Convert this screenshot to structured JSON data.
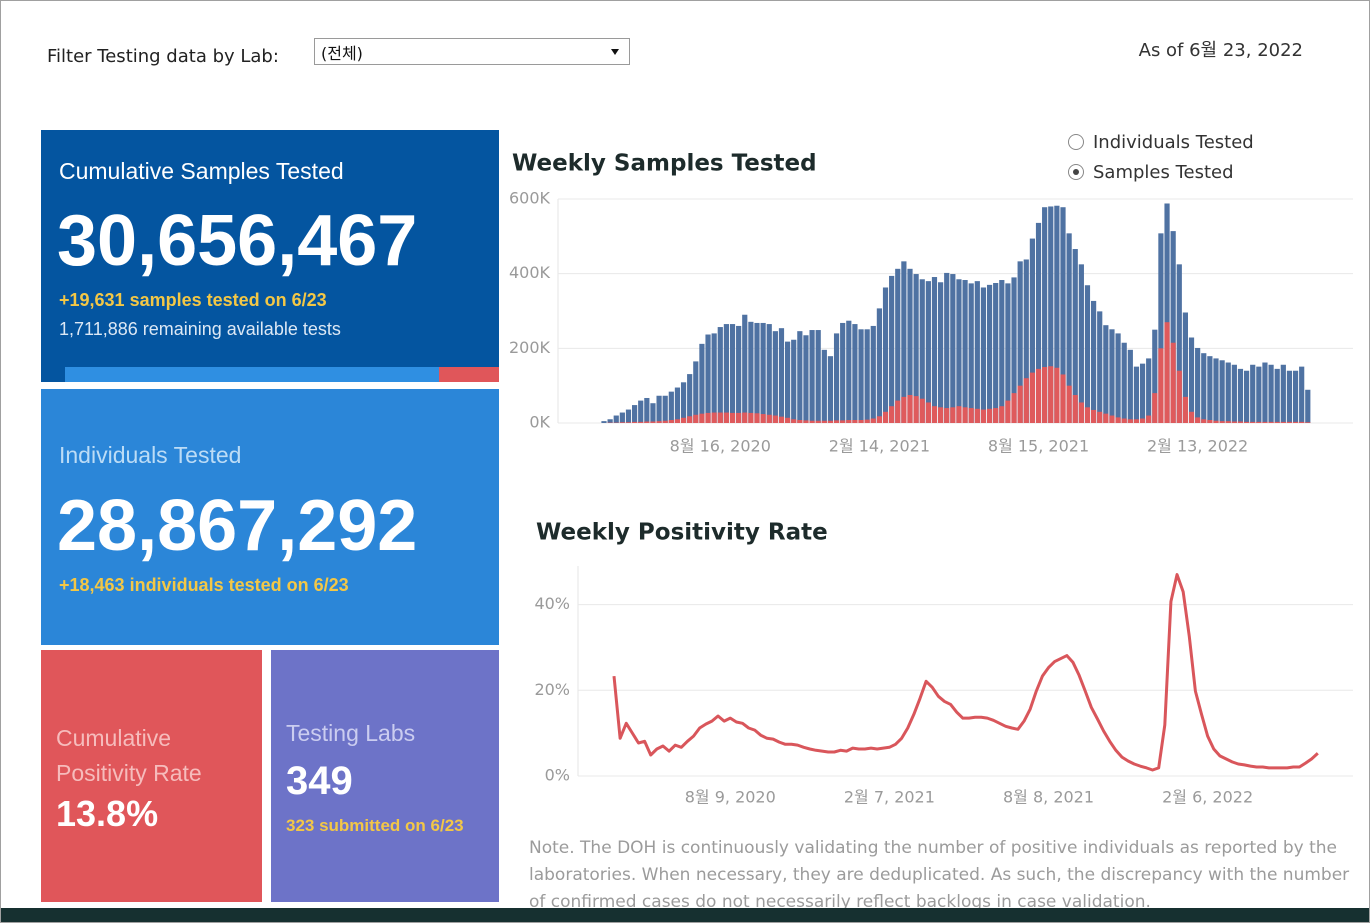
{
  "filter": {
    "label": "Filter Testing data by Lab:",
    "value": "(전체)"
  },
  "as_of": "As of 6월 23, 2022",
  "cards": {
    "samples": {
      "title": "Cumulative Samples Tested",
      "value": "30,656,467",
      "today": "+19,631 samples tested on 6/23",
      "remaining": "1,711,886 remaining available tests"
    },
    "individuals": {
      "title": "Individuals Tested",
      "value": "28,867,292",
      "today": "+18,463  individuals  tested on 6/23"
    },
    "positivity": {
      "title": "Cumulative Positivity Rate",
      "value": "13.8%"
    },
    "labs": {
      "title": "Testing Labs",
      "value": "349",
      "today": "323 submitted on 6/23"
    }
  },
  "toggle": {
    "options": [
      "Individuals Tested",
      "Samples Tested"
    ],
    "selected": 1
  },
  "chart_data": [
    {
      "type": "bar",
      "title": "Weekly Samples Tested",
      "grid": true,
      "categories": [
        null,
        null,
        null,
        null,
        null,
        null,
        null,
        null,
        null,
        null,
        null,
        null,
        null,
        null,
        null,
        null,
        null,
        null,
        null,
        "8월 16, 2020",
        null,
        null,
        null,
        null,
        null,
        null,
        null,
        null,
        null,
        null,
        null,
        null,
        null,
        null,
        null,
        null,
        null,
        null,
        null,
        null,
        null,
        null,
        null,
        null,
        null,
        "2월 14, 2021",
        null,
        null,
        null,
        null,
        null,
        null,
        null,
        null,
        null,
        null,
        null,
        null,
        null,
        null,
        null,
        null,
        null,
        null,
        null,
        null,
        null,
        null,
        null,
        null,
        null,
        "8월 15, 2021",
        null,
        null,
        null,
        null,
        null,
        null,
        null,
        null,
        null,
        null,
        null,
        null,
        null,
        null,
        null,
        null,
        null,
        null,
        null,
        null,
        null,
        null,
        null,
        null,
        null,
        "2월 13, 2022",
        null,
        null,
        null,
        null,
        null,
        null,
        null,
        null,
        null,
        null,
        null,
        null,
        null,
        null,
        null,
        null,
        null,
        null
      ],
      "ylim": [
        0,
        600000
      ],
      "yticks": [
        {
          "value": 0,
          "label": "0K"
        },
        {
          "value": 200000,
          "label": "200K"
        },
        {
          "value": 400000,
          "label": "400K"
        },
        {
          "value": 600000,
          "label": "600K"
        }
      ],
      "series": [
        {
          "color": "#4f72a2",
          "values": [
            5000,
            10000,
            20000,
            28000,
            36000,
            48000,
            60000,
            67000,
            53000,
            73000,
            73000,
            84000,
            95000,
            109000,
            131000,
            165000,
            212000,
            237000,
            240000,
            257000,
            265000,
            265000,
            260000,
            290000,
            271000,
            268000,
            268000,
            265000,
            246000,
            254000,
            218000,
            223000,
            246000,
            235000,
            249000,
            249000,
            196000,
            179000,
            240000,
            268000,
            274000,
            265000,
            251000,
            251000,
            260000,
            307000,
            363000,
            394000,
            413000,
            433000,
            413000,
            399000,
            385000,
            380000,
            391000,
            377000,
            402000,
            399000,
            385000,
            383000,
            374000,
            380000,
            363000,
            370000,
            375000,
            383000,
            374000,
            390000,
            433000,
            438000,
            494000,
            536000,
            578000,
            580000,
            582000,
            578000,
            508000,
            466000,
            425000,
            369000,
            327000,
            299000,
            262000,
            251000,
            240000,
            215000,
            196000,
            151000,
            159000,
            173000,
            250000,
            508000,
            588000,
            514000,
            425000,
            296000,
            229000,
            201000,
            187000,
            179000,
            173000,
            168000,
            162000,
            156000,
            145000,
            140000,
            156000,
            151000,
            162000,
            156000,
            145000,
            156000,
            140000,
            140000,
            151000,
            89000
          ]
        },
        {
          "color": "#df5a5c",
          "values": [
            0,
            1000,
            1000,
            2000,
            2000,
            3000,
            3000,
            4000,
            4000,
            5000,
            6000,
            8000,
            10000,
            14000,
            18000,
            22000,
            25000,
            27000,
            28000,
            28000,
            28000,
            27000,
            27000,
            28000,
            27000,
            26000,
            24000,
            22000,
            20000,
            17000,
            14000,
            10000,
            8000,
            7000,
            6000,
            6000,
            6000,
            6000,
            7000,
            7000,
            8000,
            8000,
            8000,
            9000,
            12000,
            18000,
            30000,
            45000,
            60000,
            70000,
            75000,
            72000,
            65000,
            55000,
            45000,
            42000,
            40000,
            42000,
            45000,
            42000,
            40000,
            38000,
            36000,
            38000,
            40000,
            45000,
            60000,
            80000,
            100000,
            120000,
            135000,
            145000,
            150000,
            152000,
            148000,
            130000,
            100000,
            75000,
            55000,
            42000,
            35000,
            30000,
            25000,
            20000,
            15000,
            12000,
            10000,
            10000,
            12000,
            20000,
            80000,
            200000,
            270000,
            215000,
            140000,
            70000,
            30000,
            15000,
            10000,
            8000,
            6000,
            5000,
            5000,
            4000,
            4000,
            3000,
            3000,
            3000,
            3000,
            3000,
            3000,
            3000,
            3000,
            3000,
            3000,
            2000
          ]
        }
      ]
    },
    {
      "type": "line",
      "title": "Weekly Positivity Rate",
      "grid": true,
      "categories": [
        null,
        null,
        null,
        null,
        null,
        null,
        null,
        null,
        null,
        null,
        null,
        null,
        null,
        null,
        null,
        null,
        null,
        null,
        null,
        "8월 9, 2020",
        null,
        null,
        null,
        null,
        null,
        null,
        null,
        null,
        null,
        null,
        null,
        null,
        null,
        null,
        null,
        null,
        null,
        null,
        null,
        null,
        null,
        null,
        null,
        null,
        null,
        "2월 7, 2021",
        null,
        null,
        null,
        null,
        null,
        null,
        null,
        null,
        null,
        null,
        null,
        null,
        null,
        null,
        null,
        null,
        null,
        null,
        null,
        null,
        null,
        null,
        null,
        null,
        null,
        "8월 8, 2021",
        null,
        null,
        null,
        null,
        null,
        null,
        null,
        null,
        null,
        null,
        null,
        null,
        null,
        null,
        null,
        null,
        null,
        null,
        null,
        null,
        null,
        null,
        null,
        null,
        null,
        "2월 6, 2022",
        null,
        null,
        null,
        null,
        null,
        null,
        null,
        null,
        null,
        null,
        null,
        null,
        null,
        null,
        null,
        null,
        null,
        null
      ],
      "ylim": [
        0,
        49
      ],
      "yticks": [
        {
          "value": 0,
          "label": "0%"
        },
        {
          "value": 20,
          "label": "20%"
        },
        {
          "value": 40,
          "label": "40%"
        }
      ],
      "series": [
        {
          "color": "#d9565b",
          "values": [
            23.3,
            8.8,
            12.3,
            10.0,
            7.7,
            8.1,
            4.9,
            6.3,
            7.0,
            5.8,
            7.2,
            6.7,
            8.1,
            9.3,
            11.2,
            12.1,
            12.8,
            14.0,
            12.8,
            13.5,
            12.6,
            12.3,
            11.2,
            10.7,
            9.5,
            8.8,
            8.6,
            7.9,
            7.4,
            7.4,
            7.2,
            6.7,
            6.3,
            6.0,
            5.8,
            5.6,
            5.6,
            6.0,
            5.8,
            6.5,
            6.3,
            6.3,
            6.5,
            6.3,
            6.5,
            6.7,
            7.4,
            8.8,
            11.2,
            14.4,
            18.1,
            22.1,
            20.7,
            18.6,
            17.4,
            16.7,
            14.9,
            13.5,
            13.5,
            13.7,
            13.7,
            13.5,
            13.0,
            12.3,
            11.6,
            11.2,
            10.9,
            12.8,
            15.6,
            19.8,
            23.3,
            25.3,
            26.7,
            27.4,
            28.1,
            26.5,
            23.5,
            19.8,
            16.0,
            13.3,
            10.5,
            8.1,
            6.0,
            4.4,
            3.5,
            2.8,
            2.3,
            1.9,
            1.4,
            1.9,
            11.9,
            40.7,
            47.0,
            43.0,
            32.6,
            19.8,
            14.4,
            9.3,
            6.3,
            4.7,
            4.0,
            3.3,
            2.8,
            2.6,
            2.3,
            2.1,
            2.1,
            1.9,
            1.9,
            1.9,
            1.9,
            2.1,
            2.1,
            3.0,
            4.0,
            5.3
          ]
        }
      ]
    }
  ],
  "note": "Note. The DOH is continuously validating the number of positive individuals as reported by the laboratories. When necessary, they are deduplicated. As such, the discrepancy with the number of confirmed cases do not necessarily reflect backlogs in case validation."
}
